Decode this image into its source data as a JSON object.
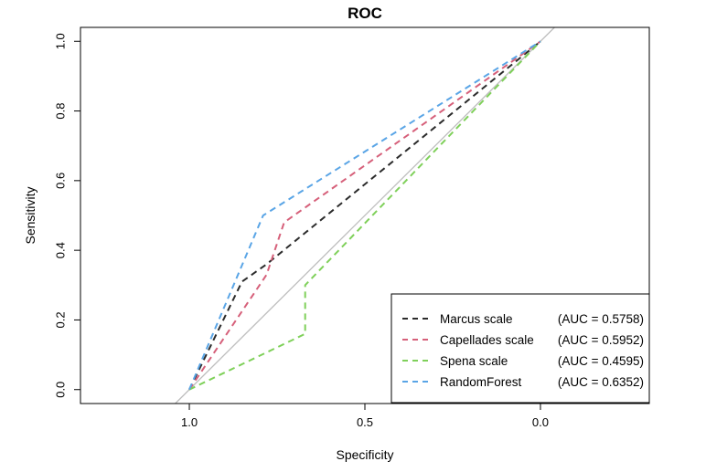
{
  "chart_data": {
    "type": "line",
    "title": "ROC",
    "xlabel": "Specificity",
    "ylabel": "Sensitivity",
    "xlim": [
      1.31,
      -0.31
    ],
    "ylim": [
      -0.04,
      1.04
    ],
    "x_reversed": true,
    "x_ticks": [
      1.0,
      0.5,
      0.0
    ],
    "x_tick_labels": [
      "1.0",
      "0.5",
      "0.0"
    ],
    "y_ticks": [
      0.0,
      0.2,
      0.4,
      0.6,
      0.8,
      1.0
    ],
    "y_tick_labels": [
      "0.0",
      "0.2",
      "0.4",
      "0.6",
      "0.8",
      "1.0"
    ],
    "grid": false,
    "legend_position": "bottom-right",
    "reference_line": {
      "x": [
        1.04,
        -0.04
      ],
      "y": [
        -0.04,
        1.04
      ],
      "color": "#bebebe"
    },
    "series": [
      {
        "name": "Marcus scale",
        "auc_label": "(AUC = 0.5758)",
        "color": "#2b2b2b",
        "x": [
          1.0,
          0.85,
          0.78,
          0.0
        ],
        "y": [
          0.0,
          0.31,
          0.36,
          1.0
        ]
      },
      {
        "name": "Capellades scale",
        "auc_label": "(AUC = 0.5952)",
        "color": "#d6607a",
        "x": [
          1.0,
          0.78,
          0.73,
          0.0
        ],
        "y": [
          0.0,
          0.33,
          0.48,
          1.0
        ]
      },
      {
        "name": "Spena scale",
        "auc_label": "(AUC = 0.4595)",
        "color": "#7fd05a",
        "x": [
          1.0,
          0.67,
          0.67,
          0.0
        ],
        "y": [
          0.0,
          0.16,
          0.3,
          1.0
        ]
      },
      {
        "name": "RandomForest",
        "auc_label": "(AUC = 0.6352)",
        "color": "#5aa5e6",
        "x": [
          1.0,
          0.79,
          0.0
        ],
        "y": [
          0.0,
          0.5,
          1.0
        ]
      }
    ]
  }
}
